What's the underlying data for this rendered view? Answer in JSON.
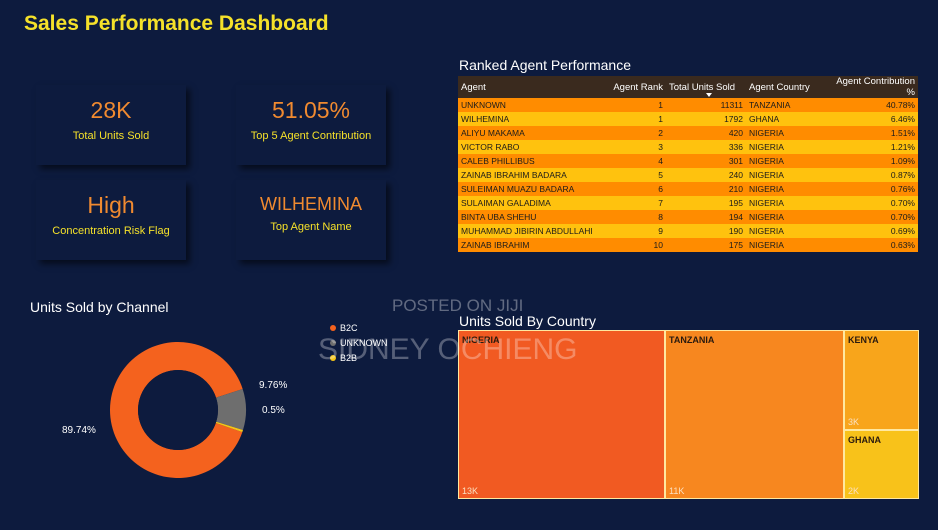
{
  "dashboard": {
    "title": "Sales Performance Dashboard"
  },
  "kpis": [
    {
      "value": "28K",
      "label": "Total Units Sold"
    },
    {
      "value": "51.05%",
      "label": "Top 5 Agent Contribution"
    },
    {
      "value": "High",
      "label": "Concentration Risk Flag"
    },
    {
      "value": "WILHEMINA",
      "label": "Top Agent Name"
    }
  ],
  "table": {
    "title": "Ranked Agent Performance",
    "columns": [
      "Agent",
      "Agent Rank",
      "Total Units Sold",
      "Agent Country",
      "Agent Contribution %"
    ],
    "rows": [
      [
        "UNKNOWN",
        "1",
        "11311",
        "TANZANIA",
        "40.78%"
      ],
      [
        "WILHEMINA",
        "1",
        "1792",
        "GHANA",
        "6.46%"
      ],
      [
        "ALIYU MAKAMA",
        "2",
        "420",
        "NIGERIA",
        "1.51%"
      ],
      [
        "VICTOR RABO",
        "3",
        "336",
        "NIGERIA",
        "1.21%"
      ],
      [
        "CALEB PHILLIBUS",
        "4",
        "301",
        "NIGERIA",
        "1.09%"
      ],
      [
        "ZAINAB IBRAHIM BADARA",
        "5",
        "240",
        "NIGERIA",
        "0.87%"
      ],
      [
        "SULEIMAN MUAZU BADARA",
        "6",
        "210",
        "NIGERIA",
        "0.76%"
      ],
      [
        "SULAIMAN GALADIMA",
        "7",
        "195",
        "NIGERIA",
        "0.70%"
      ],
      [
        "BINTA UBA SHEHU",
        "8",
        "194",
        "NIGERIA",
        "0.70%"
      ],
      [
        "MUHAMMAD JIBIRIN ABDULLAHI",
        "9",
        "190",
        "NIGERIA",
        "0.69%"
      ],
      [
        "ZAINAB IBRAHIM",
        "10",
        "175",
        "NIGERIA",
        "0.63%"
      ]
    ]
  },
  "chart_data": [
    {
      "type": "pie",
      "title": "Units Sold by Channel",
      "categories": [
        "B2C",
        "UNKNOWN",
        "B2B"
      ],
      "values": [
        89.74,
        9.76,
        0.5
      ],
      "labels": [
        "89.74%",
        "9.76%",
        "0.5%"
      ],
      "colors": [
        "#f4621e",
        "#6e6e6e",
        "#f5c518"
      ],
      "legend": "right"
    },
    {
      "type": "treemap",
      "title": "Units Sold By Country",
      "categories": [
        "NIGERIA",
        "TANZANIA",
        "KENYA",
        "GHANA"
      ],
      "values": [
        13000,
        11000,
        3000,
        2000
      ],
      "labels": [
        "13K",
        "11K",
        "3K",
        "2K"
      ],
      "colors": [
        "#f15a22",
        "#f7871f",
        "#f8a51b",
        "#f8c21a"
      ]
    }
  ],
  "watermark": {
    "line1": "POSTED ON JIJI",
    "line2": "SIDNEY OCHIENG"
  },
  "colors": {
    "background": "#0d1b3e",
    "title": "#f5e12a",
    "kpi_value": "#f08a30",
    "row_odd": "#ff8c00",
    "row_even": "#ffc20e"
  }
}
